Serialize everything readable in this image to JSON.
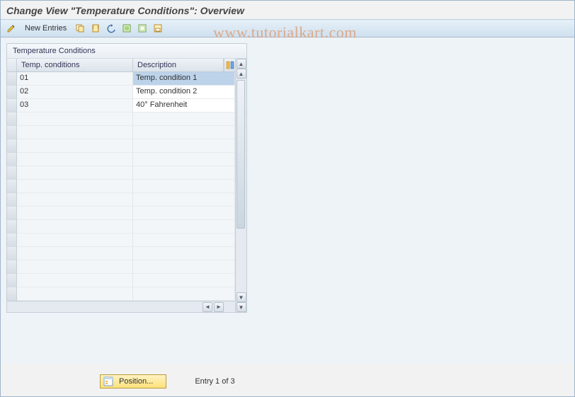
{
  "title": "Change View \"Temperature Conditions\": Overview",
  "watermark": "www.tutorialkart.com",
  "toolbar": {
    "new_entries": "New Entries"
  },
  "panel": {
    "title": "Temperature Conditions",
    "columns": {
      "c1": "Temp. conditions",
      "c2": "Description"
    },
    "rows": [
      {
        "code": "01",
        "desc": "Temp. condition 1",
        "selected": true
      },
      {
        "code": "02",
        "desc": "Temp. condition 2",
        "selected": false
      },
      {
        "code": "03",
        "desc": "40° Fahrenheit",
        "selected": false
      }
    ],
    "empty_rows": 14
  },
  "footer": {
    "position_label": "Position...",
    "entry_text": "Entry 1 of 3"
  },
  "colors": {
    "header_grad_top": "#e7f0f8",
    "header_grad_bottom": "#cfe0ef",
    "panel_bg": "#f4f7fa",
    "selected_bg": "#bcd3ea",
    "watermark_color": "#dca37f"
  }
}
